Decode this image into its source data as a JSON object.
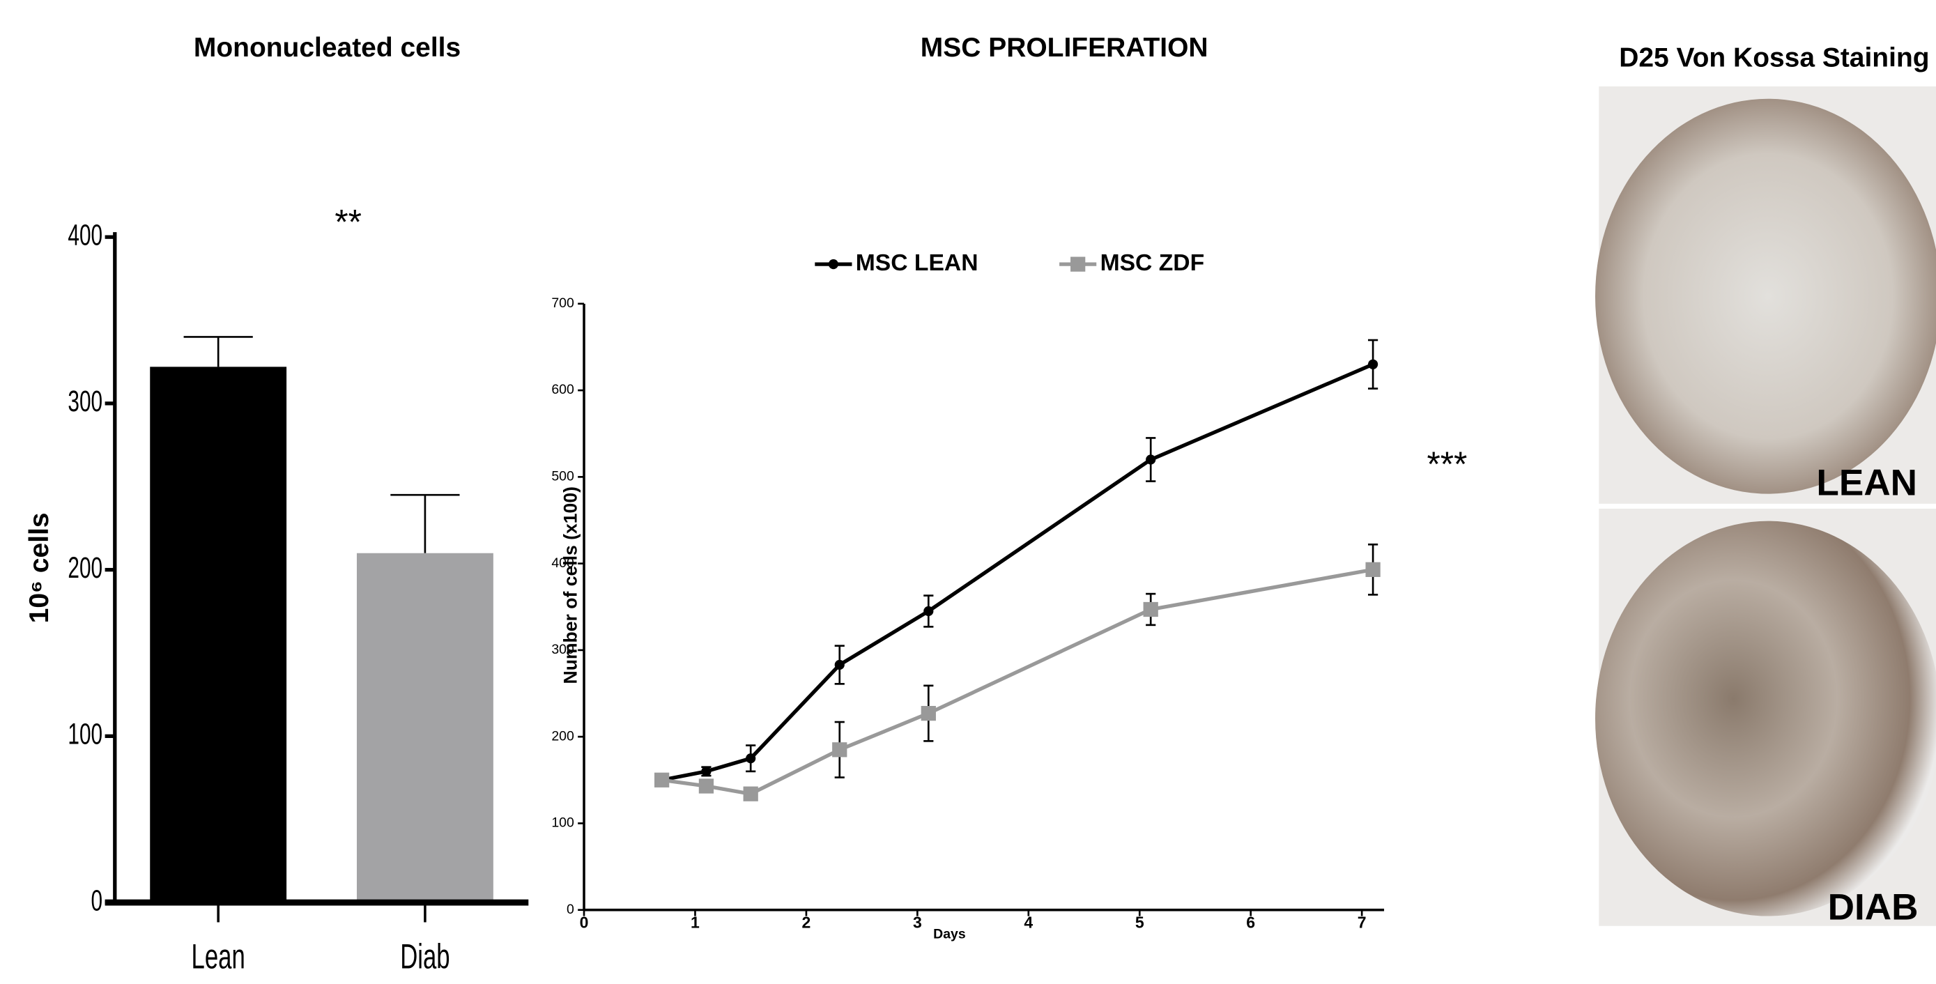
{
  "chart_data": [
    {
      "type": "bar",
      "title": "Mononucleated cells",
      "y_label": "10⁶ cells",
      "annotation": "**",
      "categories": [
        "Lean",
        "Diab"
      ],
      "values": [
        322,
        210
      ],
      "errors": [
        18,
        35
      ],
      "colors": [
        "#000000",
        "#a3a3a5"
      ],
      "ylim": [
        0,
        400
      ],
      "yticks": [
        0,
        100,
        200,
        300,
        400
      ]
    },
    {
      "type": "line",
      "title": "MSC PROLIFERATION",
      "x_label": "Days",
      "y_label": "Number of cells (x100)",
      "annotation": "***",
      "x": [
        0.7,
        1.1,
        1.5,
        2.3,
        3.1,
        5.1,
        7.1
      ],
      "series": [
        {
          "name": "MSC LEAN",
          "color": "#000000",
          "marker": "circle",
          "values": [
            150,
            160,
            175,
            283,
            345,
            520,
            630
          ],
          "errors": [
            0,
            5,
            15,
            22,
            18,
            25,
            28
          ]
        },
        {
          "name": "MSC ZDF",
          "color": "#999999",
          "marker": "square",
          "values": [
            150,
            143,
            134,
            185,
            227,
            347,
            393
          ],
          "errors": [
            0,
            5,
            5,
            32,
            32,
            18,
            29
          ]
        }
      ],
      "xlim": [
        0,
        7.2
      ],
      "xticks": [
        0,
        1,
        2,
        3,
        4,
        5,
        6,
        7
      ],
      "ylim": [
        0,
        700
      ],
      "yticks": [
        0,
        100,
        200,
        300,
        400,
        500,
        600,
        700
      ],
      "legend": "top"
    }
  ],
  "figure_panel": {
    "title": "D25 Von Kossa Staining",
    "labels": [
      "LEAN",
      "DIAB"
    ]
  }
}
